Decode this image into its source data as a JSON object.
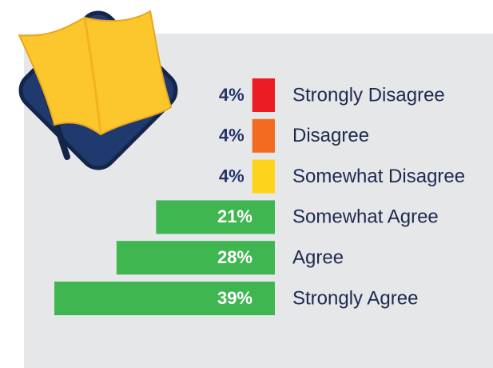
{
  "chart_data": {
    "type": "bar",
    "orientation": "horizontal",
    "categories": [
      "Strongly Disagree",
      "Disagree",
      "Somewhat Disagree",
      "Somewhat Agree",
      "Agree",
      "Strongly Agree"
    ],
    "values": [
      4,
      4,
      4,
      21,
      28,
      39
    ],
    "value_labels": [
      "4%",
      "4%",
      "4%",
      "21%",
      "28%",
      "39%"
    ],
    "colors": [
      "#ec1c24",
      "#f36b21",
      "#fdd31c",
      "#3fb650",
      "#3fb650",
      "#3fb650"
    ]
  }
}
